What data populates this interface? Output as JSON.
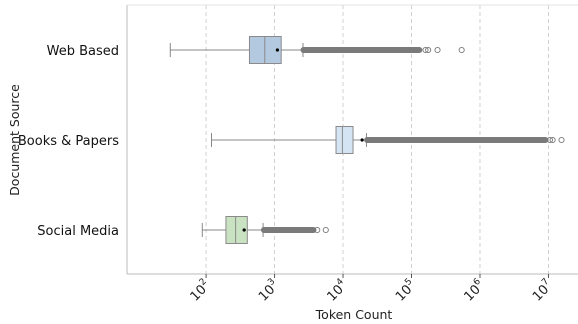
{
  "chart_data": {
    "type": "boxplot",
    "orientation": "horizontal",
    "title": "",
    "xlabel": "Token Count",
    "ylabel": "Document Source",
    "xscale": "log",
    "xlim": [
      7,
      27000000
    ],
    "x_ticks": [
      100,
      1000,
      10000,
      100000,
      1000000,
      10000000
    ],
    "x_tick_labels": [
      {
        "base": "10",
        "exp": "2"
      },
      {
        "base": "10",
        "exp": "3"
      },
      {
        "base": "10",
        "exp": "4"
      },
      {
        "base": "10",
        "exp": "5"
      },
      {
        "base": "10",
        "exp": "6"
      },
      {
        "base": "10",
        "exp": "7"
      }
    ],
    "grid": {
      "x": true,
      "y": false
    },
    "categories": [
      "Web Based",
      "Books & Papers",
      "Social Media"
    ],
    "series": [
      {
        "category": "Web Based",
        "color": "#b3c9e0",
        "whisker_low": 30,
        "q1": 430,
        "median": 720,
        "q3": 1250,
        "whisker_high": 2600,
        "mean": 1100,
        "outlier_band": [
          2650,
          130000
        ],
        "outliers": [
          160000,
          175000,
          240000,
          540000
        ]
      },
      {
        "category": "Books & Papers",
        "color": "#d4e4f2",
        "whisker_low": 120,
        "q1": 7900,
        "median": 9800,
        "q3": 14000,
        "whisker_high": 22000,
        "mean": 19000,
        "outlier_band": [
          22500,
          9000000
        ],
        "outliers": [
          10500000,
          11500000,
          15500000
        ]
      },
      {
        "category": "Social Media",
        "color": "#c9e2c1",
        "whisker_low": 88,
        "q1": 195,
        "median": 270,
        "q3": 400,
        "whisker_high": 680,
        "mean": 360,
        "outlier_band": [
          700,
          3700
        ],
        "outliers": [
          4200,
          5600
        ]
      }
    ]
  }
}
